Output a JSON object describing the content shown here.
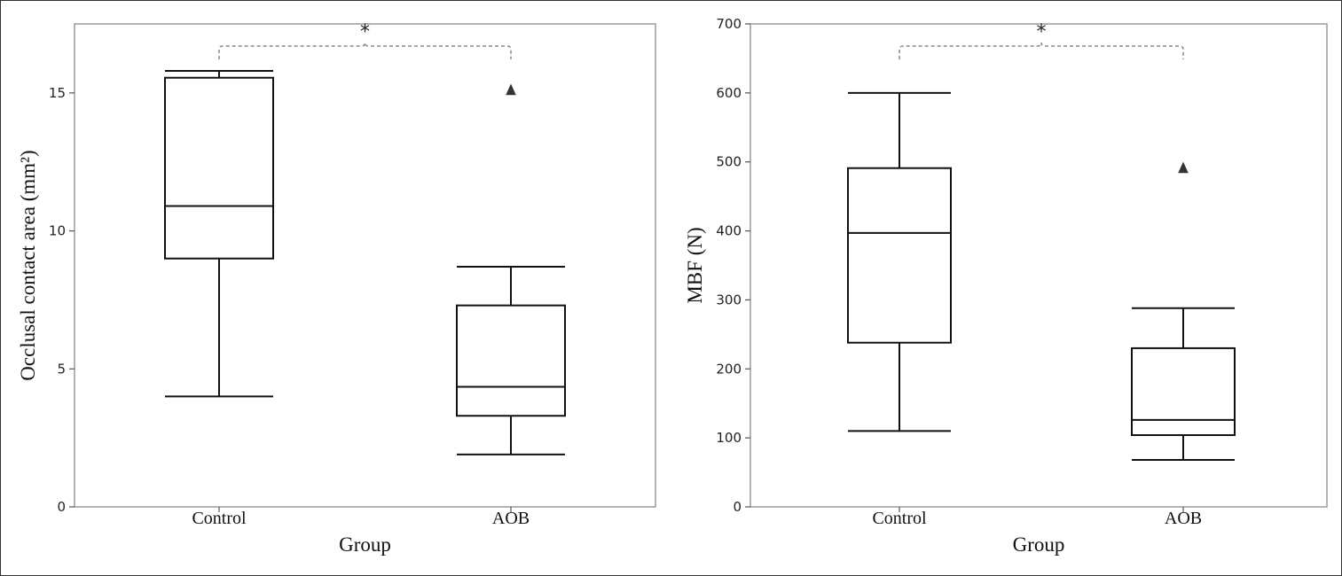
{
  "chart_data": [
    {
      "type": "box",
      "xlabel": "Group",
      "ylabel": "Occlusal contact area (mm²)",
      "ylim": [
        0,
        17.5
      ],
      "yticks": [
        0,
        5,
        10,
        15
      ],
      "categories": [
        "Control",
        "AOB"
      ],
      "boxes": [
        {
          "category": "Control",
          "whisker_low": 4.0,
          "q1": 9.0,
          "median": 10.9,
          "q3": 15.55,
          "whisker_high": 15.8,
          "outliers": []
        },
        {
          "category": "AOB",
          "whisker_low": 1.9,
          "q1": 3.3,
          "median": 4.35,
          "q3": 7.3,
          "whisker_high": 8.7,
          "outliers": [
            15.1
          ]
        }
      ],
      "significance": {
        "label": "*",
        "between": [
          "Control",
          "AOB"
        ],
        "line_style": "dashed"
      },
      "grid": false,
      "legend": "none"
    },
    {
      "type": "box",
      "xlabel": "Group",
      "ylabel": "MBF (N)",
      "ylim": [
        0,
        700
      ],
      "yticks": [
        0,
        100,
        200,
        300,
        400,
        500,
        600,
        700
      ],
      "categories": [
        "Control",
        "AOB"
      ],
      "boxes": [
        {
          "category": "Control",
          "whisker_low": 110,
          "q1": 238,
          "median": 397,
          "q3": 491,
          "whisker_high": 600,
          "outliers": []
        },
        {
          "category": "AOB",
          "whisker_low": 68,
          "q1": 104,
          "median": 126,
          "q3": 230,
          "whisker_high": 288,
          "outliers": [
            491
          ]
        }
      ],
      "significance": {
        "label": "*",
        "between": [
          "Control",
          "AOB"
        ],
        "line_style": "dashed"
      },
      "grid": false,
      "legend": "none"
    }
  ],
  "colors": {
    "box": "#111111",
    "frame": "#9a9a9a",
    "bracket": "#888888",
    "outlier": "#333333"
  }
}
